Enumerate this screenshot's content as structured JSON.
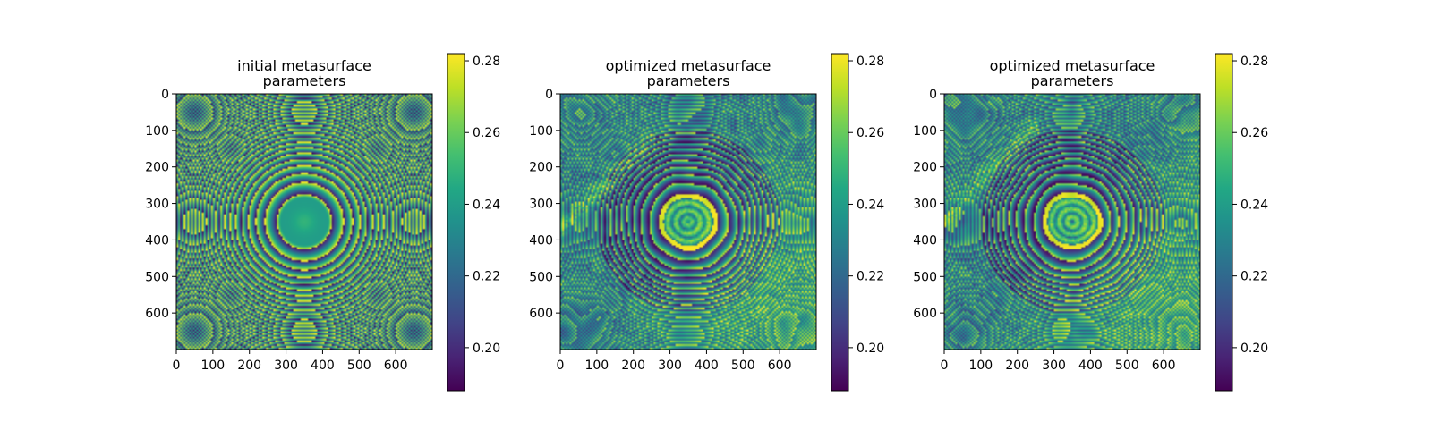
{
  "chart_data": [
    {
      "type": "heatmap",
      "title_lines": [
        "initial metasurface",
        "parameters"
      ],
      "xlim": [
        0,
        700
      ],
      "ylim": [
        700,
        0
      ],
      "x_ticks": [
        "0",
        "100",
        "200",
        "300",
        "400",
        "500",
        "600"
      ],
      "y_ticks": [
        "0",
        "100",
        "200",
        "300",
        "400",
        "500",
        "600"
      ],
      "colormap": "viridis",
      "colorbar": {
        "min": 0.188,
        "max": 0.282,
        "ticks": [
          "0.20",
          "0.22",
          "0.24",
          "0.26",
          "0.28"
        ]
      },
      "pattern": "concentric rings centered near (350, 350); central disk ~0.24 with yellow rim at radius ~75"
    },
    {
      "type": "heatmap",
      "title_lines": [
        "optimized metasurface",
        "parameters"
      ],
      "xlim": [
        0,
        700
      ],
      "ylim": [
        700,
        0
      ],
      "x_ticks": [
        "0",
        "100",
        "200",
        "300",
        "400",
        "500",
        "600"
      ],
      "y_ticks": [
        "0",
        "100",
        "200",
        "300",
        "400",
        "500",
        "600"
      ],
      "colormap": "viridis",
      "colorbar": {
        "min": 0.188,
        "max": 0.282,
        "ticks": [
          "0.20",
          "0.22",
          "0.24",
          "0.26",
          "0.28"
        ]
      },
      "pattern": "concentric rings with noisy perturbations; brighter yellow band toward lower-right"
    },
    {
      "type": "heatmap",
      "title_lines": [
        "optimized metasurface",
        "parameters"
      ],
      "xlim": [
        0,
        700
      ],
      "ylim": [
        700,
        0
      ],
      "x_ticks": [
        "0",
        "100",
        "200",
        "300",
        "400",
        "500",
        "600"
      ],
      "y_ticks": [
        "0",
        "100",
        "200",
        "300",
        "400",
        "500",
        "600"
      ],
      "colormap": "viridis",
      "colorbar": {
        "min": 0.188,
        "max": 0.282,
        "ticks": [
          "0.20",
          "0.22",
          "0.24",
          "0.26",
          "0.28"
        ]
      },
      "pattern": "concentric rings with noisy perturbations; brighter yellow band toward lower-right"
    }
  ]
}
